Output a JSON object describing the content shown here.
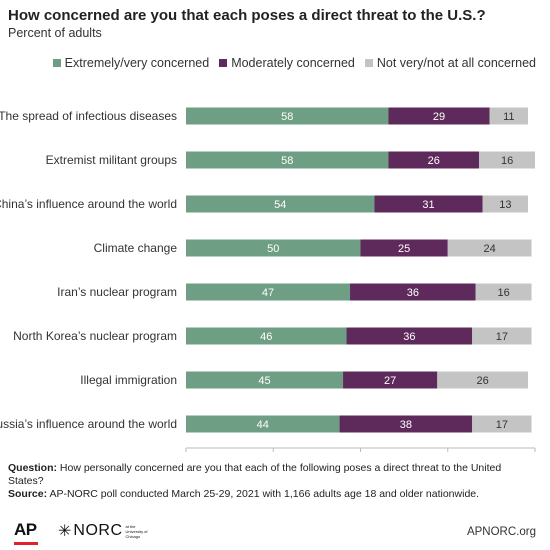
{
  "header": {
    "title": "How concerned are you that each poses a direct threat to the U.S.?",
    "subtitle": "Percent of adults"
  },
  "colors": {
    "extremely": "#6e9e84",
    "moderately": "#5e2a5b",
    "not": "#c4c4c4"
  },
  "chart_data": {
    "type": "bar",
    "orientation": "horizontal",
    "stacked": true,
    "categories": [
      "The spread of infectious diseases",
      "Extremist militant groups",
      "China’s influence around the world",
      "Climate change",
      "Iran’s nuclear program",
      "North Korea’s nuclear program",
      "Illegal immigration",
      "Russia’s influence around the world"
    ],
    "series": [
      {
        "name": "Extremely/very concerned",
        "values": [
          58,
          58,
          54,
          50,
          47,
          46,
          45,
          44
        ]
      },
      {
        "name": "Moderately concerned",
        "values": [
          29,
          26,
          31,
          25,
          36,
          36,
          27,
          38
        ]
      },
      {
        "name": "Not very/not at all concerned",
        "values": [
          11,
          16,
          13,
          24,
          16,
          17,
          26,
          17
        ]
      }
    ],
    "xlim": [
      0,
      100
    ],
    "xticks": [
      0,
      25,
      50,
      75,
      100
    ],
    "legend_position": "top-right",
    "grid": false
  },
  "notes": {
    "question_label": "Question:",
    "question_text": "How personally concerned are you that each of the following poses a direct threat to the United States?",
    "source_label": "Source:",
    "source_text": "AP-NORC poll conducted March 25-29, 2021 with 1,166 adults age 18 and older nationwide."
  },
  "footer": {
    "ap_logo": "AP",
    "norc_logo": "NORC",
    "norc_small": "at the University of Chicago",
    "site": "APNORC.org"
  }
}
